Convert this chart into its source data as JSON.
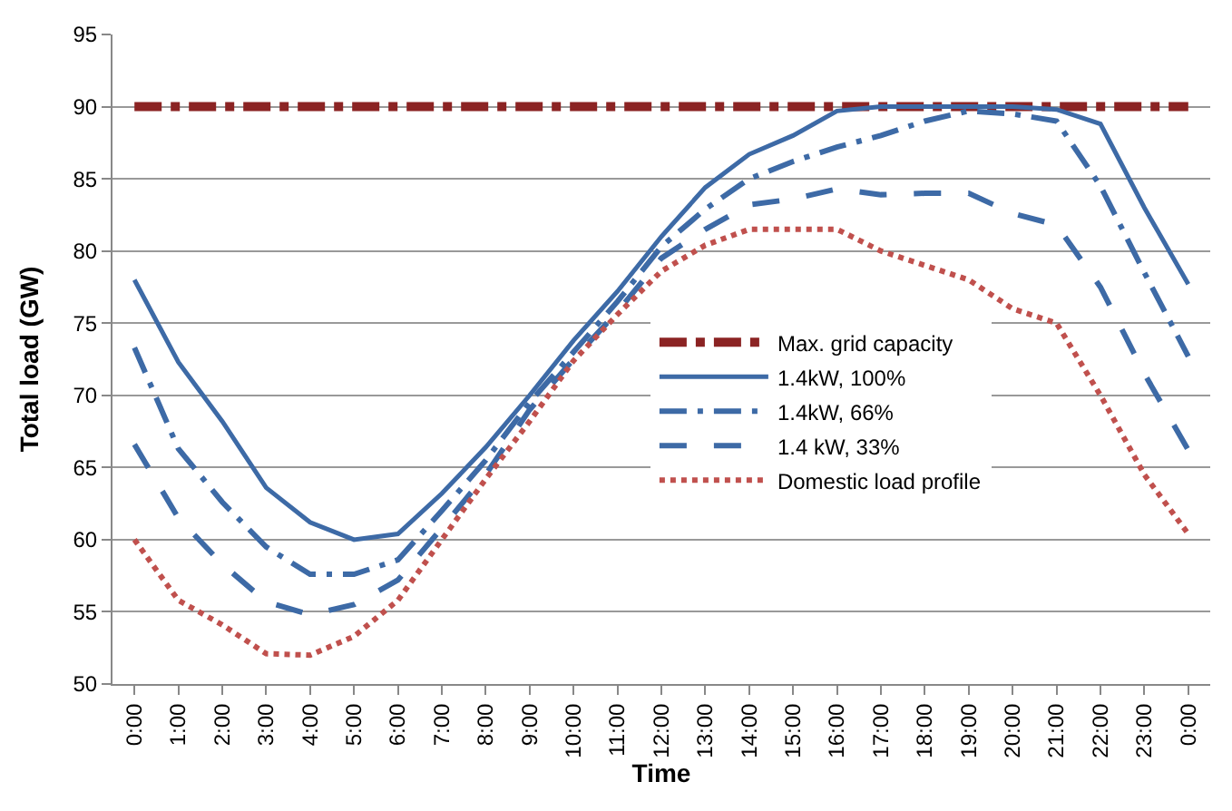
{
  "chart_data": {
    "type": "line",
    "xlabel": "Time",
    "ylabel": "Total load (GW)",
    "categories": [
      "0:00",
      "1:00",
      "2:00",
      "3:00",
      "4:00",
      "5:00",
      "6:00",
      "7:00",
      "8:00",
      "9:00",
      "10:00",
      "11:00",
      "12:00",
      "13:00",
      "14:00",
      "15:00",
      "16:00",
      "17:00",
      "18:00",
      "19:00",
      "20:00",
      "21:00",
      "22:00",
      "23:00",
      "0:00"
    ],
    "ylim": [
      50,
      95
    ],
    "yticks": [
      50,
      55,
      60,
      65,
      70,
      75,
      80,
      85,
      90,
      95
    ],
    "grid": "y",
    "legend": "right",
    "marker": "none",
    "series": [
      {
        "name": "Max. grid capacity",
        "color": "#8b2323",
        "line_style": "dashdot",
        "values": [
          90,
          90,
          90,
          90,
          90,
          90,
          90,
          90,
          90,
          90,
          90,
          90,
          90,
          90,
          90,
          90,
          90,
          90,
          90,
          90,
          90,
          90,
          90,
          90,
          90
        ]
      },
      {
        "name": "1.4kW, 100%",
        "color": "#3d6aa6",
        "line_style": "solid",
        "values": [
          78,
          72.3,
          68.2,
          63.6,
          61.2,
          60,
          60.4,
          63.2,
          66.4,
          70,
          73.8,
          77.2,
          81,
          84.4,
          86.7,
          88,
          89.7,
          90,
          90,
          90,
          90,
          89.8,
          88.8,
          83,
          77.7
        ]
      },
      {
        "name": "1.4kW, 66%",
        "color": "#3d6aa6",
        "line_style": "longdashdot",
        "values": [
          73.3,
          66.3,
          62.6,
          59.5,
          57.6,
          57.6,
          58.6,
          62,
          65.5,
          69.5,
          73,
          76.5,
          80.3,
          82.9,
          85,
          86.2,
          87.2,
          88,
          89,
          89.7,
          89.5,
          89,
          84.5,
          78.5,
          72.7
        ]
      },
      {
        "name": "1.4 kW, 33%",
        "color": "#3d6aa6",
        "line_style": "dashed",
        "values": [
          66.6,
          61.5,
          58.3,
          55.7,
          54.8,
          55.5,
          57.2,
          60.8,
          64.5,
          69,
          72.5,
          75.8,
          79.5,
          81.5,
          83.2,
          83.6,
          84.3,
          83.9,
          84,
          84,
          82.6,
          81.8,
          77.5,
          71.5,
          66.2
        ]
      },
      {
        "name": "Domestic load profile",
        "color": "#c0504d",
        "line_style": "dotted",
        "values": [
          60,
          55.8,
          54.1,
          52.1,
          52,
          53.3,
          55.8,
          60,
          64.2,
          68.2,
          72.4,
          75.6,
          78.6,
          80.4,
          81.5,
          81.5,
          81.5,
          80,
          79,
          78,
          76,
          75,
          70,
          64.5,
          60.4
        ]
      }
    ]
  }
}
